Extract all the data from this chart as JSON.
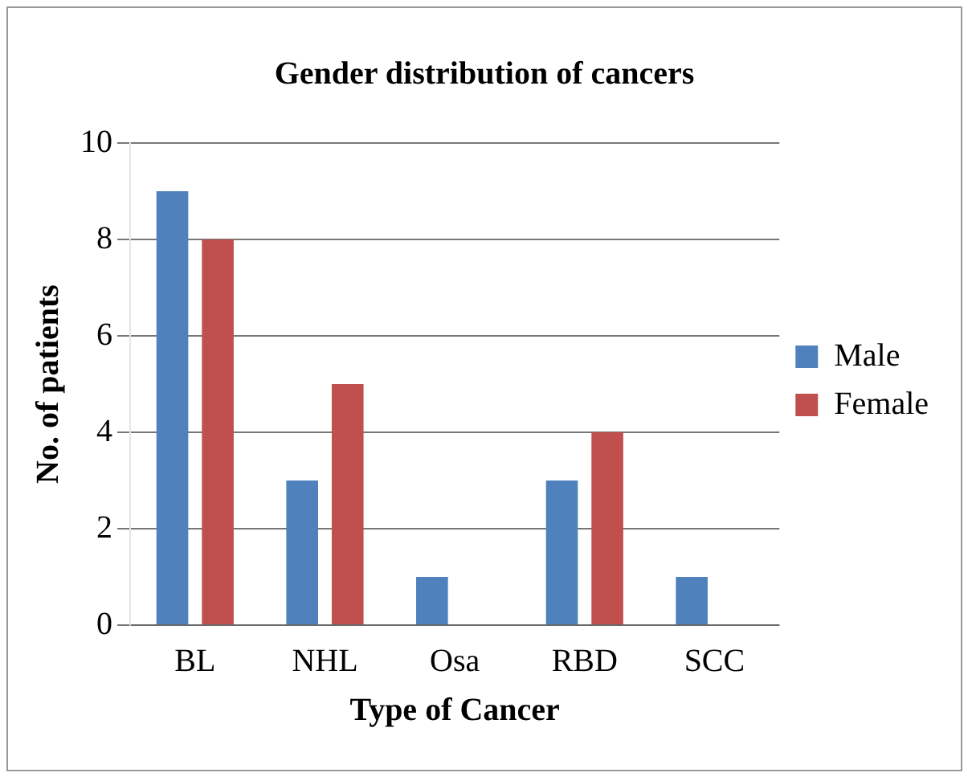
{
  "chart_data": {
    "type": "bar",
    "title": "Gender distribution of cancers",
    "xlabel": "Type of Cancer",
    "ylabel": "No. of patients",
    "categories": [
      "BL",
      "NHL",
      "Osa",
      "RBD",
      "SCC"
    ],
    "series": [
      {
        "name": "Male",
        "color": "#4f81bd",
        "values": [
          9,
          3,
          1,
          3,
          1
        ]
      },
      {
        "name": "Female",
        "color": "#c0504d",
        "values": [
          8,
          5,
          0,
          4,
          0
        ]
      }
    ],
    "ylim": [
      0,
      10
    ],
    "yticks": [
      0,
      2,
      4,
      6,
      8,
      10
    ],
    "grid": "y",
    "legend": "right"
  }
}
